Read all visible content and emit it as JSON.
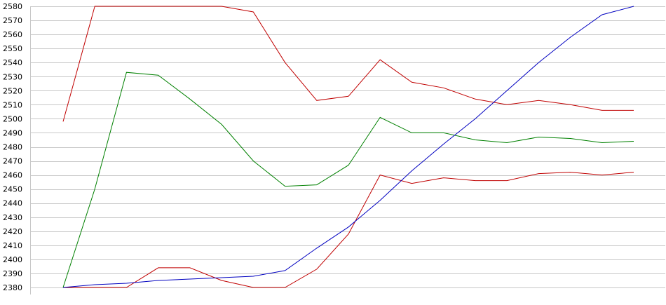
{
  "chart_data": {
    "type": "line",
    "title": "",
    "xlabel": "",
    "ylabel": "",
    "grid": true,
    "legend": "none",
    "ylim": [
      2380,
      2580
    ],
    "yticks": [
      2380,
      2390,
      2400,
      2410,
      2420,
      2430,
      2440,
      2450,
      2460,
      2470,
      2480,
      2490,
      2500,
      2510,
      2520,
      2530,
      2540,
      2550,
      2560,
      2570,
      2580
    ],
    "x": [
      0,
      1,
      2,
      3,
      4,
      5,
      6,
      7,
      8,
      9,
      10,
      11,
      12,
      13,
      14,
      15,
      16,
      17,
      18
    ],
    "series": [
      {
        "color": "#c00000",
        "values": [
          2498,
          2580,
          2580,
          2580,
          2580,
          2580,
          2576,
          2540,
          2513,
          2516,
          2542,
          2526,
          2522,
          2514,
          2510,
          2513,
          2510,
          2506,
          2506
        ]
      },
      {
        "color": "#008000",
        "values": [
          2380,
          2450,
          2533,
          2531,
          2514,
          2496,
          2470,
          2452,
          2453,
          2467,
          2501,
          2490,
          2490,
          2485,
          2483,
          2487,
          2486,
          2483,
          2484
        ]
      },
      {
        "color": "#c00000",
        "values": [
          2380,
          2380,
          2380,
          2394,
          2394,
          2385,
          2380,
          2380,
          2393,
          2418,
          2460,
          2454,
          2458,
          2456,
          2456,
          2461,
          2462,
          2460,
          2462
        ]
      },
      {
        "color": "#0000c0",
        "values": [
          2380,
          2382,
          2383,
          2385,
          2386,
          2387,
          2388,
          2392,
          2408,
          2423,
          2442,
          2463,
          2482,
          2500,
          2520,
          2540,
          2558,
          2574,
          2580
        ]
      }
    ]
  }
}
